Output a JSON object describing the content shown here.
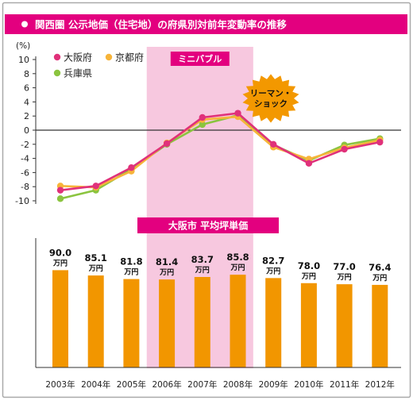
{
  "colors": {
    "osaka": "#e0317a",
    "kyoto": "#f7b43a",
    "hyogo": "#8bc43f",
    "bar": "#f29600",
    "magenta": "#e3007f",
    "highlight": "#f7c8df",
    "starburst": "#f39800"
  },
  "chart_data": [
    {
      "type": "line",
      "title": "関西圏 公示地価（住宅地）の府県別対前年変動率の推移",
      "ylabel": "(%)",
      "ylim": [
        -10,
        10
      ],
      "yticks": [
        10,
        8,
        6,
        4,
        2,
        0,
        -2,
        -4,
        -6,
        -8,
        -10
      ],
      "categories": [
        "2003年",
        "2004年",
        "2005年",
        "2006年",
        "2007年",
        "2008年",
        "2009年",
        "2010年",
        "2011年",
        "2012年"
      ],
      "series": [
        {
          "name": "大阪府",
          "values": [
            -8.5,
            -7.9,
            -5.3,
            -1.9,
            1.8,
            2.4,
            -2.0,
            -4.7,
            -2.7,
            -1.7
          ]
        },
        {
          "name": "京都府",
          "values": [
            -7.9,
            -8.1,
            -5.8,
            -1.8,
            1.5,
            1.9,
            -2.4,
            -4.1,
            -2.5,
            -1.4
          ]
        },
        {
          "name": "兵庫県",
          "values": [
            -9.7,
            -8.5,
            -5.5,
            -2.0,
            0.8,
            2.1,
            -2.1,
            -4.3,
            -2.1,
            -1.2
          ]
        }
      ],
      "legend_position": "top-left",
      "annotations": {
        "highlight_label": "ミニバブル",
        "highlight_range": [
          "2006年",
          "2008年"
        ],
        "callout": [
          "リーマン・",
          "ショック"
        ]
      },
      "grid": false
    },
    {
      "type": "bar",
      "title": "大阪市 平均坪単価",
      "categories": [
        "2003年",
        "2004年",
        "2005年",
        "2006年",
        "2007年",
        "2008年",
        "2009年",
        "2010年",
        "2011年",
        "2012年"
      ],
      "values": [
        90.0,
        85.1,
        81.8,
        81.4,
        83.7,
        85.8,
        82.7,
        78.0,
        77.0,
        76.4
      ],
      "value_labels": [
        "90.0",
        "85.1",
        "81.8",
        "81.4",
        "83.7",
        "85.8",
        "82.7",
        "78.0",
        "77.0",
        "76.4"
      ],
      "unit": "万円",
      "grid": false
    }
  ]
}
